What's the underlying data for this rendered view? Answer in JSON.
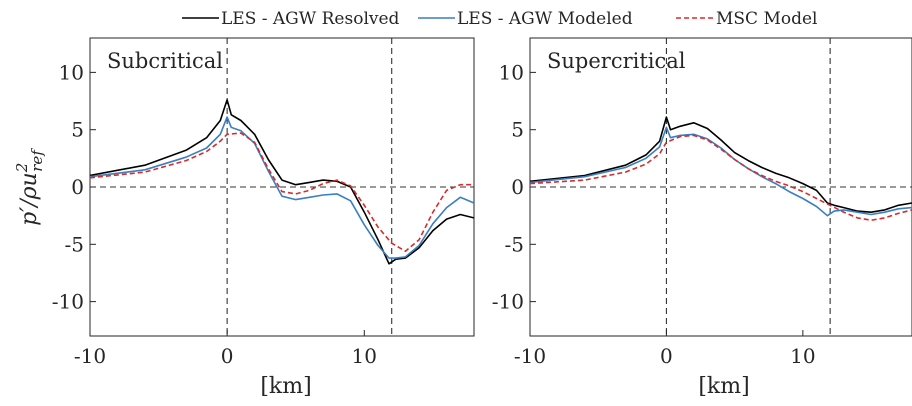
{
  "legend": {
    "resolved": "LES - AGW Resolved",
    "modeled": "LES - AGW Modeled",
    "msc": "MSC Model"
  },
  "colors": {
    "resolved": "#000000",
    "modeled": "#3a7fc1",
    "msc": "#d92b2b",
    "guides": "#333333"
  },
  "y_axis_label": "p′/ρu²ref",
  "x_axis_label": "[km]",
  "chart_data": [
    {
      "type": "line",
      "title": "Subcritical",
      "xlabel": "[km]",
      "ylabel": "p′/ρu²ref",
      "xlim": [
        -10,
        18
      ],
      "ylim": [
        -13,
        13
      ],
      "xticks": [
        -10,
        0,
        10
      ],
      "yticks": [
        10,
        5,
        0,
        -5,
        -10
      ],
      "vertical_dashed": [
        0,
        12
      ],
      "horizontal_dashed": [
        0
      ],
      "series": [
        {
          "name": "LES - AGW Resolved",
          "x": [
            -10,
            -6,
            -3,
            -1.5,
            -0.5,
            0,
            0.3,
            1,
            2,
            3,
            4,
            5,
            6,
            7,
            8,
            9,
            10,
            11,
            11.8,
            12.3,
            13,
            14,
            15,
            16,
            17,
            18
          ],
          "y": [
            1,
            1.9,
            3.2,
            4.3,
            5.8,
            7.6,
            6.3,
            5.8,
            4.6,
            2.4,
            0.6,
            0.2,
            0.4,
            0.6,
            0.5,
            0,
            -2.2,
            -4.6,
            -6.7,
            -6.3,
            -6.2,
            -5.3,
            -3.8,
            -2.8,
            -2.4,
            -2.7
          ]
        },
        {
          "name": "LES - AGW Modeled",
          "x": [
            -10,
            -6,
            -3,
            -1.5,
            -0.5,
            0,
            0.3,
            1,
            2,
            3,
            4,
            5,
            6,
            7,
            8,
            9,
            10,
            11,
            11.8,
            12.3,
            13,
            14,
            15,
            16,
            17,
            18
          ],
          "y": [
            0.9,
            1.5,
            2.6,
            3.4,
            4.6,
            6.1,
            5.2,
            4.9,
            3.8,
            1.4,
            -0.8,
            -1.1,
            -0.9,
            -0.7,
            -0.6,
            -1.2,
            -3.3,
            -5.1,
            -6.2,
            -6.2,
            -6.1,
            -5.1,
            -3.2,
            -1.8,
            -0.9,
            -1.4
          ]
        },
        {
          "name": "MSC Model",
          "x": [
            -10,
            -6,
            -3,
            -1.5,
            -0.5,
            0,
            1,
            2,
            3,
            4,
            5,
            6,
            7,
            8,
            9,
            10,
            11,
            12,
            13,
            14,
            15,
            16,
            17,
            18
          ],
          "y": [
            0.8,
            1.3,
            2.3,
            3.1,
            4.0,
            4.6,
            4.7,
            3.9,
            1.6,
            -0.4,
            -0.6,
            -0.3,
            0.3,
            0.6,
            0.1,
            -1.6,
            -3.5,
            -4.9,
            -5.6,
            -4.6,
            -2.2,
            -0.3,
            0.2,
            0.2
          ]
        }
      ]
    },
    {
      "type": "line",
      "title": "Supercritical",
      "xlabel": "[km]",
      "ylabel": "",
      "xlim": [
        -10,
        18
      ],
      "ylim": [
        -13,
        13
      ],
      "xticks": [
        -10,
        0,
        10
      ],
      "yticks": [
        10,
        5,
        0,
        -5,
        -10
      ],
      "vertical_dashed": [
        0,
        12
      ],
      "horizontal_dashed": [
        0
      ],
      "series": [
        {
          "name": "LES - AGW Resolved",
          "x": [
            -10,
            -6,
            -3,
            -1.5,
            -0.5,
            0,
            0.3,
            1,
            2,
            3,
            4,
            5,
            6,
            7,
            8,
            9,
            10,
            11,
            11.8,
            12.3,
            13,
            14,
            15,
            16,
            17,
            18
          ],
          "y": [
            0.5,
            1,
            1.9,
            2.8,
            4.0,
            6.1,
            5.0,
            5.3,
            5.6,
            5.1,
            4.1,
            3.0,
            2.3,
            1.7,
            1.2,
            0.8,
            0.3,
            -0.3,
            -1.4,
            -1.6,
            -1.8,
            -2.1,
            -2.2,
            -2.0,
            -1.6,
            -1.4
          ]
        },
        {
          "name": "LES - AGW Modeled",
          "x": [
            -10,
            -6,
            -3,
            -1.5,
            -0.5,
            0,
            0.3,
            1,
            2,
            3,
            4,
            5,
            6,
            7,
            8,
            9,
            10,
            11,
            11.8,
            12.3,
            13,
            14,
            15,
            16,
            17,
            18
          ],
          "y": [
            0.4,
            0.9,
            1.7,
            2.5,
            3.5,
            5.2,
            4.3,
            4.5,
            4.6,
            4.2,
            3.4,
            2.4,
            1.6,
            0.9,
            0.3,
            -0.4,
            -1.0,
            -1.7,
            -2.5,
            -2.1,
            -2.0,
            -2.2,
            -2.4,
            -2.2,
            -1.9,
            -1.8
          ]
        },
        {
          "name": "MSC Model",
          "x": [
            -10,
            -6,
            -3,
            -1.5,
            -0.5,
            0,
            1,
            2,
            3,
            4,
            5,
            6,
            7,
            8,
            9,
            10,
            11,
            12,
            13,
            14,
            15,
            16,
            17,
            18
          ],
          "y": [
            0.3,
            0.6,
            1.3,
            2.0,
            2.9,
            3.9,
            4.4,
            4.5,
            4.1,
            3.3,
            2.4,
            1.6,
            1.0,
            0.5,
            0.1,
            -0.4,
            -1.0,
            -1.6,
            -2.2,
            -2.7,
            -2.9,
            -2.7,
            -2.3,
            -2.0
          ]
        }
      ]
    }
  ]
}
